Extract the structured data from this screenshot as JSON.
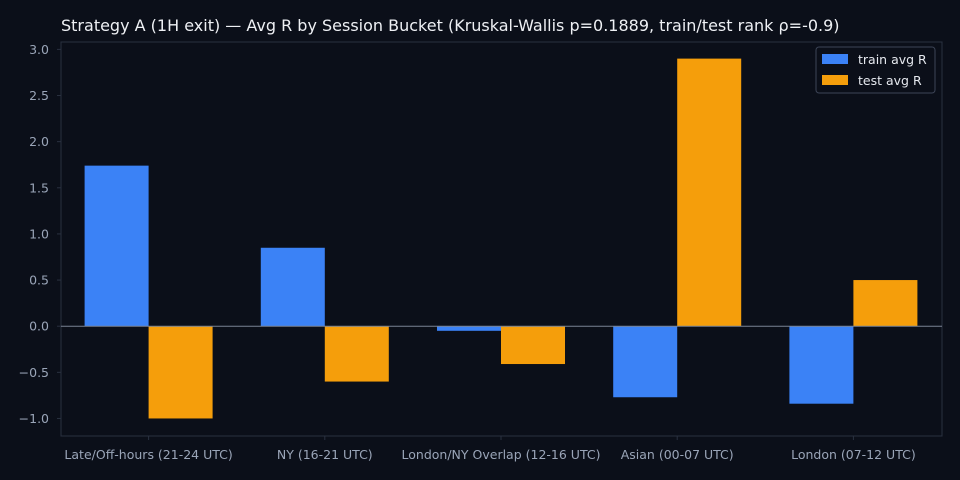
{
  "colors": {
    "background": "#0b0f19",
    "plot_frame": "#2a3140",
    "zero_line": "#7a8394",
    "title": "#eef0f4",
    "tick_text": "#9aa5b8"
  },
  "chart_data": {
    "type": "bar",
    "title": "Strategy A (1H exit) — Avg R by Session Bucket (Kruskal-Wallis p=0.1889, train/test rank ρ=-0.9)",
    "xlabel": "",
    "ylabel": "",
    "categories": [
      "Late/Off-hours (21-24 UTC)",
      "NY (16-21 UTC)",
      "London/NY Overlap (12-16 UTC)",
      "Asian (00-07 UTC)",
      "London (07-12 UTC)"
    ],
    "series": [
      {
        "name": "train avg R",
        "color": "#3b82f6",
        "values": [
          1.74,
          0.85,
          -0.05,
          -0.77,
          -0.84
        ]
      },
      {
        "name": "test avg R",
        "color": "#f59e0b",
        "values": [
          -1.0,
          -0.6,
          -0.41,
          2.9,
          0.5
        ]
      }
    ],
    "ylim": [
      -1.19,
      3.08
    ],
    "yticks": [
      -1.0,
      -0.5,
      0.0,
      0.5,
      1.0,
      1.5,
      2.0,
      2.5,
      3.0
    ],
    "ytick_labels": [
      "−1.0",
      "−0.5",
      "0.0",
      "0.5",
      "1.0",
      "1.5",
      "2.0",
      "2.5",
      "3.0"
    ],
    "zero_line": true,
    "grid": false,
    "legend": {
      "position": "top-right",
      "labels": [
        "train avg R",
        "test avg R"
      ]
    }
  }
}
